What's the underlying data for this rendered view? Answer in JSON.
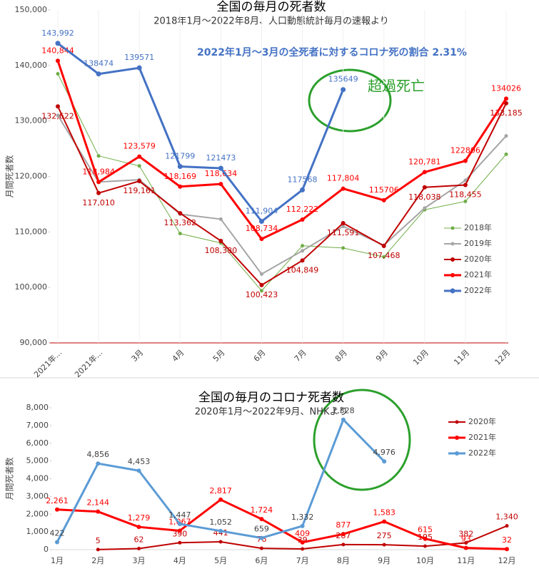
{
  "chart_data": [
    {
      "type": "line",
      "title": "全国の毎月の死者数",
      "subtitle": "2018年1月〜2022年8月、人口動態統計毎月の速報より",
      "annotations": [
        "2022年1月〜3月の全死者に対するコロナ死の割合  2.31%",
        "超過死亡"
      ],
      "ylabel": "月間死者数",
      "categories": [
        "2021年...",
        "2021年...",
        "3月",
        "4月",
        "5月",
        "6月",
        "7月",
        "8月",
        "9月",
        "10月",
        "11月",
        "12月"
      ],
      "ylim": [
        90000,
        150000
      ],
      "yticks": [
        {
          "value": 90000,
          "label": "90,000"
        },
        {
          "value": 100000,
          "label": "100,000"
        },
        {
          "value": 110000,
          "label": "110,000"
        },
        {
          "value": 120000,
          "label": "120,000"
        },
        {
          "value": 130000,
          "label": "130,000"
        },
        {
          "value": 140000,
          "label": "140,000"
        },
        {
          "value": 150000,
          "label": "150,000"
        }
      ],
      "series": [
        {
          "name": "2018年",
          "color": "#70ad47",
          "values": [
            138500,
            123700,
            121900,
            109700,
            108000,
            99400,
            107500,
            107100,
            105500,
            114000,
            115500,
            124000
          ]
        },
        {
          "name": "2019年",
          "color": "#a5a5a5",
          "values": [
            131000,
            119000,
            119400,
            113200,
            112300,
            102400,
            106600,
            111000,
            107600,
            114300,
            119300,
            127300
          ]
        },
        {
          "name": "2020年",
          "color": "#c00000",
          "values": [
            132622,
            117010,
            119161,
            113362,
            108380,
            100423,
            104849,
            111591,
            107468,
            118038,
            118455,
            133185
          ],
          "value_labels": [
            "132,622",
            "117,010",
            "119,161",
            "113,362",
            "108,380",
            "100,423",
            "104,849",
            "111,591",
            "107,468",
            "118,038",
            "118,455",
            "133,185"
          ]
        },
        {
          "name": "2021年",
          "color": "#ff0000",
          "values": [
            140844,
            118984,
            123579,
            118169,
            118634,
            108734,
            112222,
            117804,
            115706,
            120781,
            122806,
            134026
          ],
          "value_labels": [
            "140,844",
            "118,984",
            "123,579",
            "118,169",
            "118,634",
            "108,734",
            "112,222",
            "117,804",
            "115706",
            "120,781",
            "122806",
            "134026"
          ]
        },
        {
          "name": "2022年",
          "color": "#4472c4",
          "values": [
            143992,
            138474,
            139571,
            121799,
            121473,
            111904,
            117568,
            135649,
            null,
            null,
            null,
            null
          ],
          "value_labels": [
            "143,992",
            "138474",
            "139571",
            "121799",
            "121473",
            "111,904",
            "117568",
            "135649",
            null,
            null,
            null,
            null
          ]
        }
      ]
    },
    {
      "type": "line",
      "title": "全国の毎月のコロナ死者数",
      "subtitle": "2020年1月〜2022年9月、NHKより",
      "ylabel": "月間死者数",
      "categories": [
        "1月",
        "2月",
        "3月",
        "4月",
        "5月",
        "6月",
        "7月",
        "8月",
        "9月",
        "10月",
        "11月",
        "12月"
      ],
      "ylim": [
        0,
        8000
      ],
      "yticks": [
        0,
        {
          "value": 1000,
          "label": "1,000"
        },
        {
          "value": 2000,
          "label": "2,000"
        },
        {
          "value": 3000,
          "label": "3,000"
        },
        {
          "value": 4000,
          "label": "4,000"
        },
        {
          "value": 5000,
          "label": "5,000"
        },
        {
          "value": 6000,
          "label": "6,000"
        },
        {
          "value": 7000,
          "label": "7,000"
        },
        {
          "value": 8000,
          "label": "8,000"
        }
      ],
      "series": [
        {
          "name": "2020年",
          "color": "#c00000",
          "values": [
            null,
            5,
            62,
            390,
            441,
            76,
            39,
            287,
            275,
            195,
            382,
            1340
          ],
          "value_labels": [
            null,
            "5",
            "62",
            "390",
            "441",
            "76",
            "39",
            "287",
            "275",
            "195",
            "382",
            "1,340"
          ]
        },
        {
          "name": "2021年",
          "color": "#ff0000",
          "values": [
            2261,
            2144,
            1279,
            1067,
            2817,
            1724,
            409,
            877,
            1583,
            615,
            93,
            32
          ],
          "value_labels": [
            "2,261",
            "2,144",
            "1,279",
            "1,067",
            "2,817",
            "1,724",
            "409",
            "877",
            "1,583",
            "615",
            "93",
            "32"
          ]
        },
        {
          "name": "2022年",
          "color": "#5b9bd5",
          "values": [
            422,
            4856,
            4453,
            1447,
            1052,
            659,
            1332,
            7328,
            4976,
            null,
            null,
            null
          ],
          "value_labels": [
            "422",
            "4,856",
            "4,453",
            "1,447",
            "1,052",
            "659",
            "1,332",
            "7,328",
            "4,976",
            null,
            null,
            null
          ]
        }
      ]
    }
  ]
}
